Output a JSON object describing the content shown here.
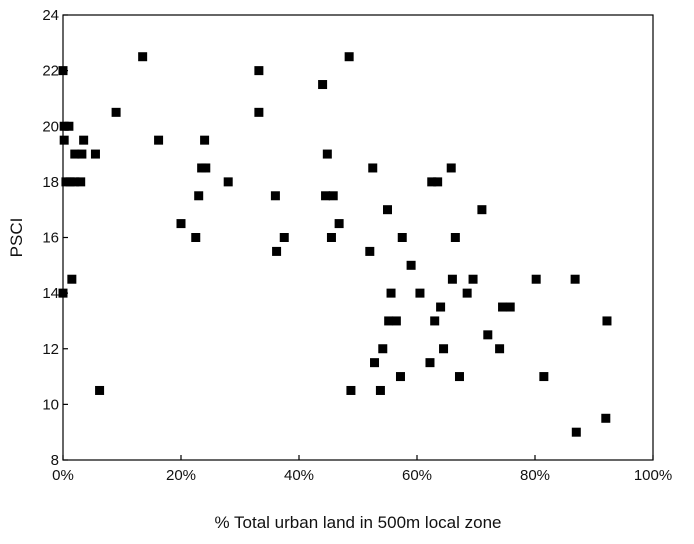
{
  "chart_data": {
    "type": "scatter",
    "title": "",
    "xlabel": "% Total urban land in 500m local zone",
    "ylabel": "PSCI",
    "xlim": [
      0,
      100
    ],
    "ylim": [
      8,
      24
    ],
    "x_ticks": [
      "0%",
      "20%",
      "40%",
      "60%",
      "80%",
      "100%"
    ],
    "x_tick_values": [
      0,
      20,
      40,
      60,
      80,
      100
    ],
    "y_ticks": [
      "8",
      "10",
      "12",
      "14",
      "16",
      "18",
      "20",
      "22",
      "24"
    ],
    "y_tick_values": [
      8,
      10,
      12,
      14,
      16,
      18,
      20,
      22,
      24
    ],
    "grid": false,
    "marker_color": "#000000",
    "points": [
      {
        "x": 0.0,
        "y": 22.0
      },
      {
        "x": 0.2,
        "y": 20.0
      },
      {
        "x": 1.0,
        "y": 20.0
      },
      {
        "x": 0.2,
        "y": 19.5
      },
      {
        "x": 0.5,
        "y": 18.0
      },
      {
        "x": 1.2,
        "y": 18.0
      },
      {
        "x": 2.0,
        "y": 18.0
      },
      {
        "x": 3.0,
        "y": 18.0
      },
      {
        "x": 2.0,
        "y": 19.0
      },
      {
        "x": 3.2,
        "y": 19.0
      },
      {
        "x": 3.5,
        "y": 19.5
      },
      {
        "x": 5.5,
        "y": 19.0
      },
      {
        "x": 1.5,
        "y": 14.5
      },
      {
        "x": 0.0,
        "y": 14.0
      },
      {
        "x": 6.2,
        "y": 10.5
      },
      {
        "x": 9.0,
        "y": 20.5
      },
      {
        "x": 13.5,
        "y": 22.5
      },
      {
        "x": 16.2,
        "y": 19.5
      },
      {
        "x": 20.0,
        "y": 16.5
      },
      {
        "x": 22.5,
        "y": 16.0
      },
      {
        "x": 23.0,
        "y": 17.5
      },
      {
        "x": 23.5,
        "y": 18.5
      },
      {
        "x": 24.2,
        "y": 18.5
      },
      {
        "x": 24.0,
        "y": 19.5
      },
      {
        "x": 28.0,
        "y": 18.0
      },
      {
        "x": 33.2,
        "y": 22.0
      },
      {
        "x": 33.2,
        "y": 20.5
      },
      {
        "x": 36.0,
        "y": 17.5
      },
      {
        "x": 36.2,
        "y": 15.5
      },
      {
        "x": 37.5,
        "y": 16.0
      },
      {
        "x": 44.0,
        "y": 21.5
      },
      {
        "x": 48.5,
        "y": 22.5
      },
      {
        "x": 44.8,
        "y": 19.0
      },
      {
        "x": 44.5,
        "y": 17.5
      },
      {
        "x": 45.8,
        "y": 17.5
      },
      {
        "x": 45.5,
        "y": 16.0
      },
      {
        "x": 46.8,
        "y": 16.5
      },
      {
        "x": 48.8,
        "y": 10.5
      },
      {
        "x": 52.0,
        "y": 15.5
      },
      {
        "x": 52.5,
        "y": 18.5
      },
      {
        "x": 52.8,
        "y": 11.5
      },
      {
        "x": 53.8,
        "y": 10.5
      },
      {
        "x": 54.2,
        "y": 12.0
      },
      {
        "x": 55.0,
        "y": 17.0
      },
      {
        "x": 55.2,
        "y": 13.0
      },
      {
        "x": 55.6,
        "y": 14.0
      },
      {
        "x": 56.5,
        "y": 13.0
      },
      {
        "x": 57.2,
        "y": 11.0
      },
      {
        "x": 57.5,
        "y": 16.0
      },
      {
        "x": 59.0,
        "y": 15.0
      },
      {
        "x": 60.5,
        "y": 14.0
      },
      {
        "x": 62.2,
        "y": 11.5
      },
      {
        "x": 62.5,
        "y": 18.0
      },
      {
        "x": 63.5,
        "y": 18.0
      },
      {
        "x": 63.0,
        "y": 13.0
      },
      {
        "x": 64.0,
        "y": 13.5
      },
      {
        "x": 64.5,
        "y": 12.0
      },
      {
        "x": 65.8,
        "y": 18.5
      },
      {
        "x": 66.0,
        "y": 14.5
      },
      {
        "x": 66.5,
        "y": 16.0
      },
      {
        "x": 67.2,
        "y": 11.0
      },
      {
        "x": 68.5,
        "y": 14.0
      },
      {
        "x": 69.5,
        "y": 14.5
      },
      {
        "x": 71.0,
        "y": 17.0
      },
      {
        "x": 72.0,
        "y": 12.5
      },
      {
        "x": 74.0,
        "y": 12.0
      },
      {
        "x": 74.5,
        "y": 13.5
      },
      {
        "x": 75.8,
        "y": 13.5
      },
      {
        "x": 80.2,
        "y": 14.5
      },
      {
        "x": 81.5,
        "y": 11.0
      },
      {
        "x": 86.8,
        "y": 14.5
      },
      {
        "x": 87.0,
        "y": 9.0
      },
      {
        "x": 92.2,
        "y": 13.0
      },
      {
        "x": 92.0,
        "y": 9.5
      }
    ]
  }
}
